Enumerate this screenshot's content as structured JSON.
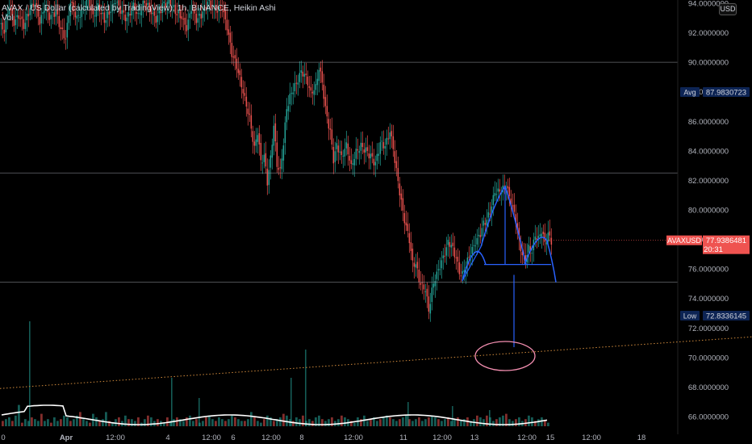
{
  "legend": {
    "symbol_line": "AVAX / US Dollar (calculated by TradingView), 1h, BINANCE, Heikin Ashi",
    "volume_label": "Vol"
  },
  "currency_badge": "USD",
  "colors": {
    "up": "#26a69a",
    "down": "#ef5350",
    "drawing_blue": "#2962ff",
    "circle_pink": "#f48fb1",
    "trendline_orange": "#d08a3c",
    "volume_ma": "#ffffff",
    "tag_blue_bg": "#0d2454"
  },
  "chart_data": {
    "type": "candlestick",
    "title": "AVAX / US Dollar (calculated by TradingView), 1h, BINANCE, Heikin Ashi",
    "y_axis": {
      "ticks": [
        "94.0000000",
        "92.0000000",
        "90.0000000",
        "88.0000000",
        "86.0000000",
        "84.0000000",
        "82.0000000",
        "80.0000000",
        "78.0000000",
        "76.0000000",
        "74.0000000",
        "72.0000000",
        "70.0000000",
        "68.0000000",
        "66.0000000"
      ],
      "tick_values": [
        94,
        92,
        90,
        88,
        86,
        84,
        82,
        80,
        78,
        76,
        74,
        72,
        70,
        68,
        66
      ],
      "range": [
        65.4,
        94.2
      ]
    },
    "x_axis": {
      "ticks": [
        "0",
        "Apr",
        "12:00",
        "4",
        "12:00",
        "6",
        "12:00",
        "8",
        "12:00",
        "11",
        "12:00",
        "13",
        "12:00",
        "15",
        "12:00",
        "18"
      ]
    },
    "price_path_waypoints": [
      [
        0,
        92.6
      ],
      [
        6,
        92.1
      ],
      [
        12,
        93.8
      ],
      [
        18,
        92.7
      ],
      [
        24,
        93.2
      ],
      [
        30,
        92.5
      ],
      [
        38,
        93.6
      ],
      [
        44,
        94.0
      ],
      [
        50,
        92.7
      ],
      [
        56,
        93.7
      ],
      [
        62,
        93.1
      ],
      [
        70,
        93.4
      ],
      [
        76,
        92.2
      ],
      [
        82,
        91.6
      ],
      [
        88,
        94.1
      ],
      [
        96,
        92.9
      ],
      [
        104,
        93.7
      ],
      [
        110,
        94.3
      ],
      [
        116,
        93.1
      ],
      [
        122,
        93.8
      ],
      [
        130,
        92.9
      ],
      [
        138,
        93.5
      ],
      [
        144,
        94.2
      ],
      [
        152,
        93.3
      ],
      [
        158,
        92.9
      ],
      [
        166,
        93.9
      ],
      [
        172,
        93.1
      ],
      [
        180,
        94.2
      ],
      [
        188,
        93.4
      ],
      [
        194,
        92.9
      ],
      [
        202,
        93.8
      ],
      [
        210,
        94.1
      ],
      [
        218,
        93.5
      ],
      [
        226,
        93.0
      ],
      [
        232,
        92.3
      ],
      [
        238,
        93.7
      ],
      [
        244,
        92.9
      ],
      [
        252,
        93.3
      ],
      [
        258,
        94.1
      ],
      [
        264,
        93.7
      ],
      [
        270,
        93.5
      ],
      [
        276,
        93.7
      ],
      [
        282,
        92.4
      ],
      [
        288,
        90.6
      ],
      [
        294,
        89.8
      ],
      [
        298,
        88.9
      ],
      [
        304,
        87.5
      ],
      [
        310,
        86.2
      ],
      [
        316,
        84.1
      ],
      [
        320,
        85.3
      ],
      [
        324,
        83.3
      ],
      [
        328,
        83.6
      ],
      [
        332,
        81.9
      ],
      [
        336,
        83.5
      ],
      [
        340,
        85.7
      ],
      [
        344,
        83.1
      ],
      [
        348,
        82.6
      ],
      [
        352,
        84.5
      ],
      [
        356,
        86.9
      ],
      [
        362,
        88.0
      ],
      [
        368,
        88.6
      ],
      [
        374,
        89.4
      ],
      [
        380,
        89.0
      ],
      [
        386,
        87.9
      ],
      [
        392,
        88.3
      ],
      [
        396,
        89.6
      ],
      [
        400,
        88.7
      ],
      [
        404,
        86.8
      ],
      [
        410,
        85.2
      ],
      [
        414,
        83.4
      ],
      [
        418,
        84.4
      ],
      [
        424,
        83.6
      ],
      [
        430,
        84.4
      ],
      [
        436,
        82.9
      ],
      [
        442,
        83.9
      ],
      [
        448,
        84.3
      ],
      [
        454,
        84.0
      ],
      [
        460,
        83.6
      ],
      [
        466,
        83.1
      ],
      [
        472,
        84.5
      ],
      [
        478,
        84.3
      ],
      [
        484,
        85.3
      ],
      [
        488,
        84.2
      ],
      [
        492,
        82.6
      ],
      [
        496,
        81.2
      ],
      [
        500,
        79.9
      ],
      [
        504,
        78.8
      ],
      [
        508,
        78.0
      ],
      [
        512,
        76.4
      ],
      [
        516,
        76.3
      ],
      [
        520,
        75.3
      ],
      [
        524,
        74.8
      ],
      [
        528,
        74.6
      ],
      [
        532,
        73.2
      ],
      [
        536,
        74.5
      ],
      [
        540,
        75.4
      ],
      [
        546,
        76.2
      ],
      [
        552,
        77.1
      ],
      [
        556,
        77.8
      ],
      [
        560,
        77.6
      ],
      [
        566,
        76.7
      ],
      [
        570,
        75.8
      ],
      [
        574,
        75.6
      ],
      [
        578,
        76.3
      ],
      [
        584,
        77.1
      ],
      [
        590,
        77.8
      ],
      [
        596,
        78.4
      ],
      [
        600,
        79.1
      ],
      [
        604,
        79.3
      ],
      [
        610,
        80.2
      ],
      [
        614,
        81.3
      ],
      [
        618,
        81.2
      ],
      [
        624,
        81.4
      ],
      [
        628,
        81.7
      ],
      [
        632,
        80.9
      ],
      [
        636,
        80.1
      ],
      [
        640,
        79.3
      ],
      [
        644,
        77.9
      ],
      [
        648,
        76.9
      ],
      [
        652,
        76.7
      ],
      [
        656,
        77.4
      ],
      [
        660,
        77.2
      ],
      [
        664,
        78.3
      ],
      [
        668,
        78.0
      ],
      [
        672,
        78.6
      ],
      [
        676,
        77.8
      ],
      [
        680,
        78.3
      ],
      [
        684,
        77.9
      ]
    ],
    "volume_bars": [
      3,
      4,
      5,
      3,
      6,
      12,
      2,
      4,
      3,
      5,
      4,
      3,
      7,
      3,
      4,
      2,
      5,
      3,
      4,
      6,
      5,
      3,
      4,
      6,
      8,
      4,
      3,
      2,
      7,
      5,
      3,
      4,
      8,
      3,
      2,
      4,
      5,
      3,
      6,
      4,
      4,
      3,
      5,
      2,
      4,
      6,
      5,
      3,
      4,
      3,
      2,
      5,
      3,
      4,
      5,
      4,
      3,
      5,
      6,
      3,
      4,
      2,
      3,
      5,
      6,
      4,
      3,
      5,
      4,
      3,
      4,
      6,
      5,
      4,
      3,
      3,
      4,
      8,
      5,
      3,
      2,
      4,
      6,
      5,
      3,
      4,
      5,
      7,
      6,
      4,
      3,
      5,
      4,
      6,
      3,
      4,
      3,
      5,
      6,
      4,
      3,
      4,
      5,
      3,
      4,
      6,
      5,
      4,
      3,
      2,
      5,
      4,
      6,
      3,
      4,
      5,
      3,
      4,
      5,
      6,
      5,
      4,
      3,
      4,
      5,
      6,
      4,
      3,
      4,
      5,
      3,
      4,
      5,
      6,
      5,
      4,
      3,
      4,
      5,
      3,
      4,
      5,
      3,
      4,
      5,
      3,
      4,
      6,
      5,
      4,
      6,
      5,
      3,
      4,
      5,
      6,
      7,
      4,
      3,
      4,
      5,
      3,
      4,
      6,
      5,
      3,
      4,
      5,
      3,
      2
    ],
    "horizontal_lines": [
      90.0,
      82.5,
      75.1
    ],
    "trendline": {
      "from": [
        0,
        67.9
      ],
      "to": [
        932,
        71.4
      ],
      "style": "dotted"
    },
    "pattern_drawing": {
      "name": "head and shoulders",
      "neckline": 76.3,
      "head_peak": 81.6,
      "target": 70.7
    },
    "labels": {
      "avg": {
        "name": "Avg",
        "value": "87.9830723",
        "y": 87.983
      },
      "low": {
        "name": "Low",
        "value": "72.8336145",
        "y": 72.834
      },
      "last": {
        "name": "AVAXUSD",
        "value": "77.9386481",
        "countdown": "20:31",
        "y": 77.94
      }
    }
  }
}
